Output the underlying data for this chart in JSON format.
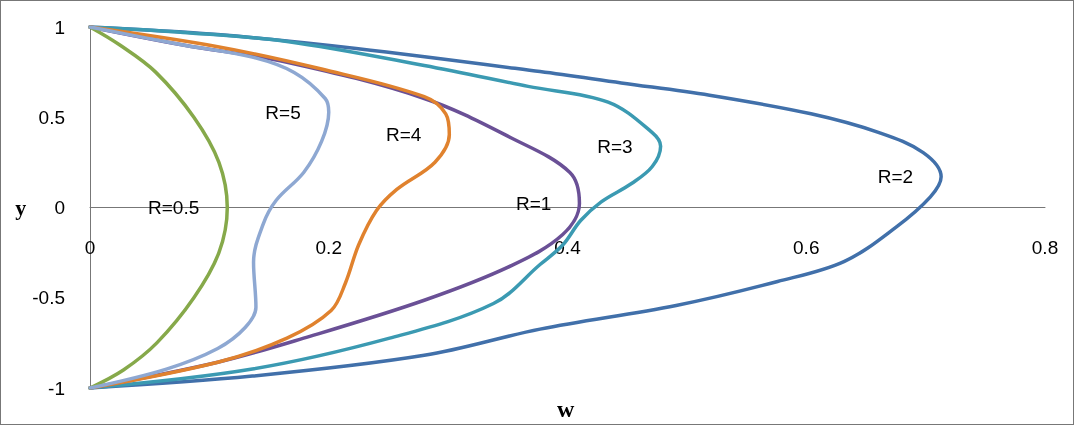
{
  "chart_data": {
    "type": "line",
    "xlabel": "w",
    "ylabel": "y",
    "xlim": [
      0,
      0.8
    ],
    "xticks": [
      0,
      0.2,
      0.4,
      0.6,
      0.8
    ],
    "ylim": [
      -1,
      1
    ],
    "yticks": [
      -1,
      -0.5,
      0,
      0.5,
      1
    ],
    "grid": false,
    "marker": "none",
    "line_style": "solid",
    "series": [
      {
        "name": "R=2",
        "color": "#4170aa",
        "x": [
          0,
          0.107,
          0.223,
          0.377,
          0.445,
          0.519,
          0.604,
          0.661,
          0.698,
          0.713,
          0.704,
          0.675,
          0.632,
          0.576,
          0.491,
          0.377,
          0.28,
          0.136,
          0
        ],
        "values": [
          1,
          0.958,
          0.881,
          0.753,
          0.69,
          0.622,
          0.519,
          0.415,
          0.304,
          0.17,
          0.059,
          -0.11,
          -0.298,
          -0.41,
          -0.543,
          -0.674,
          -0.819,
          -0.934,
          -1
        ]
      },
      {
        "name": "R=3",
        "color": "#3b9ab2",
        "x": [
          0,
          0.078,
          0.165,
          0.28,
          0.367,
          0.434,
          0.471,
          0.478,
          0.471,
          0.454,
          0.428,
          0.411,
          0.396,
          0.377,
          0.338,
          0.251,
          0.136,
          0
        ],
        "values": [
          1,
          0.97,
          0.92,
          0.787,
          0.671,
          0.584,
          0.415,
          0.34,
          0.227,
          0.134,
          0.03,
          -0.072,
          -0.208,
          -0.316,
          -0.532,
          -0.724,
          -0.895,
          -1
        ]
      },
      {
        "name": "R=1",
        "color": "#6a5096",
        "x": [
          0,
          0.078,
          0.165,
          0.28,
          0.353,
          0.402,
          0.41,
          0.396,
          0.353,
          0.28,
          0.179,
          0.107,
          0
        ],
        "values": [
          1,
          0.9,
          0.805,
          0.604,
          0.385,
          0.194,
          0.022,
          -0.15,
          -0.322,
          -0.514,
          -0.724,
          -0.857,
          -1
        ]
      },
      {
        "name": "R=4",
        "color": "#e0822e",
        "x": [
          0,
          0.107,
          0.194,
          0.28,
          0.298,
          0.301,
          0.289,
          0.257,
          0.24,
          0.225,
          0.214,
          0.202,
          0.165,
          0.107,
          0
        ],
        "values": [
          1,
          0.891,
          0.767,
          0.614,
          0.519,
          0.404,
          0.251,
          0.1,
          -0.017,
          -0.208,
          -0.418,
          -0.571,
          -0.724,
          -0.857,
          -1
        ]
      },
      {
        "name": "R=0.5",
        "color": "#86a94a",
        "x": [
          0,
          0.025,
          0.055,
          0.087,
          0.108,
          0.115,
          0.108,
          0.087,
          0.056,
          0.028,
          0
        ],
        "values": [
          1,
          0.9,
          0.75,
          0.5,
          0.25,
          0,
          -0.25,
          -0.5,
          -0.75,
          -0.9,
          -1
        ]
      },
      {
        "name": "R=5",
        "color": "#8ea8d2",
        "x": [
          0,
          0.078,
          0.136,
          0.171,
          0.197,
          0.2,
          0.194,
          0.179,
          0.156,
          0.145,
          0.137,
          0.139,
          0.13,
          0.107,
          0.064,
          0
        ],
        "values": [
          1,
          0.9,
          0.833,
          0.748,
          0.604,
          0.528,
          0.366,
          0.194,
          0.04,
          -0.093,
          -0.303,
          -0.552,
          -0.665,
          -0.781,
          -0.895,
          -1
        ]
      }
    ]
  }
}
